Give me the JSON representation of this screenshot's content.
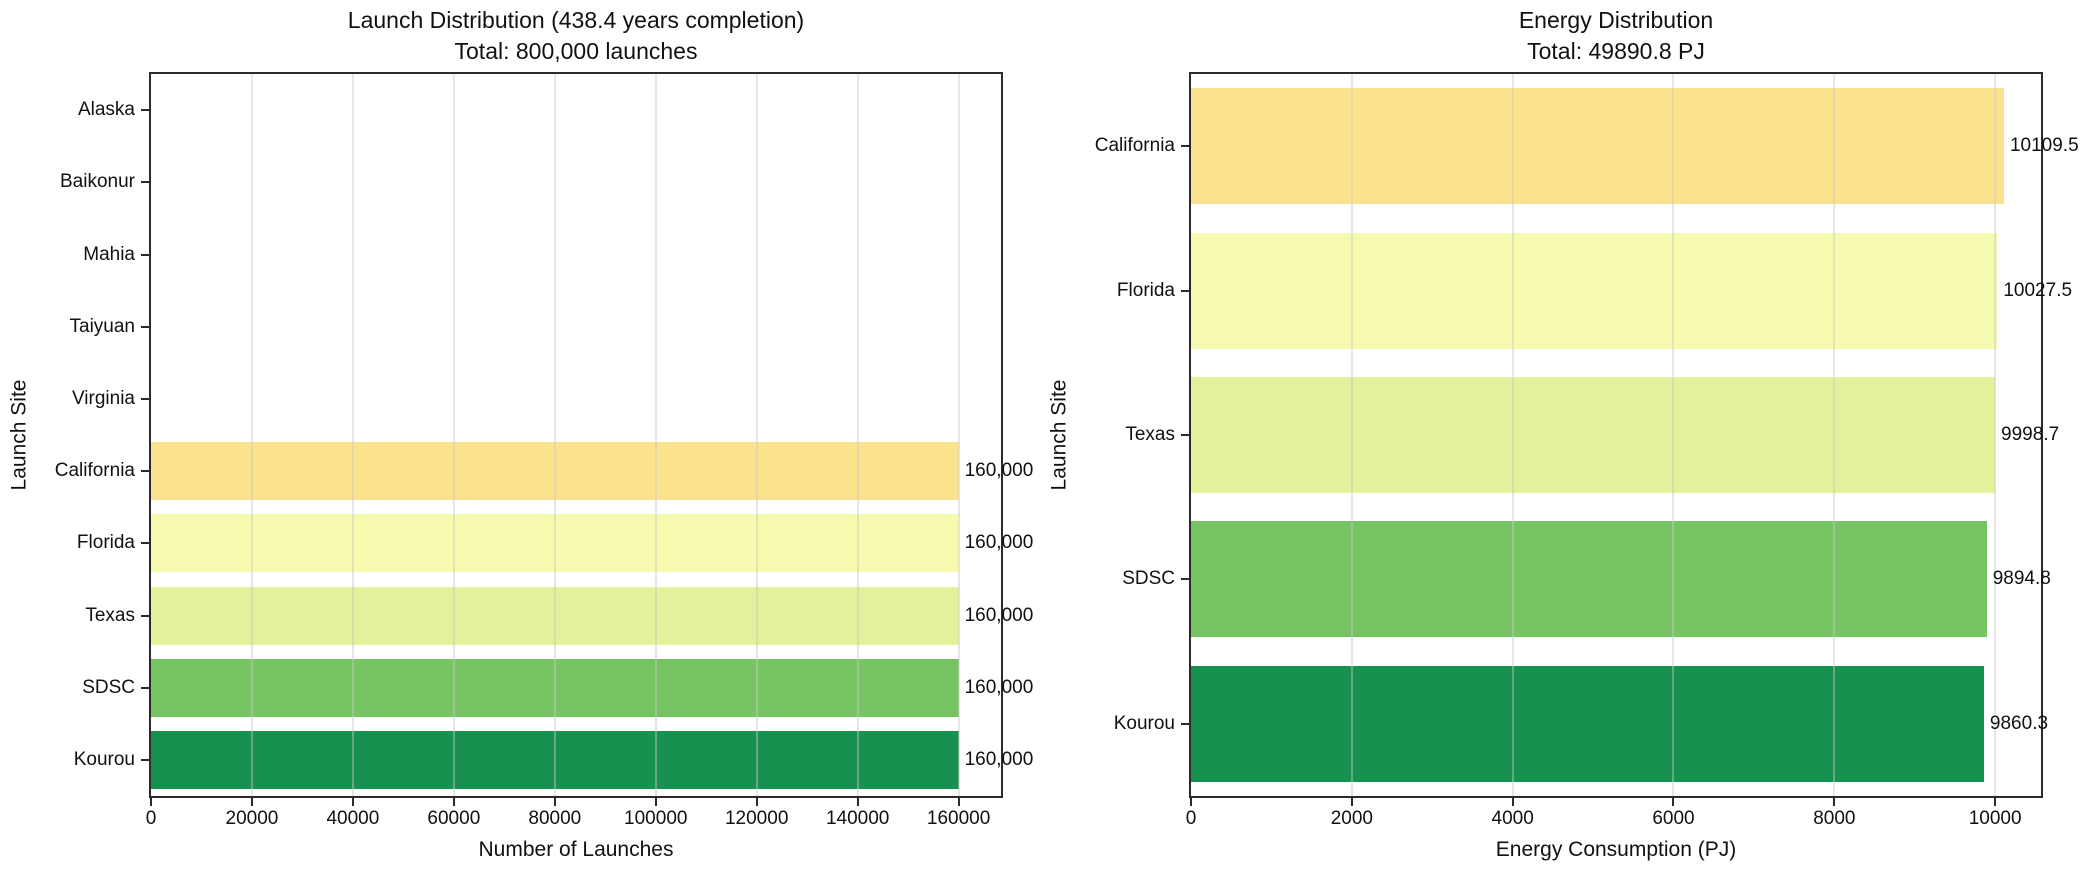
{
  "figure": {
    "background": "#ffffff",
    "text_color": "#111111",
    "spine_color": "#2a2a2a",
    "gridline_rgba": "rgba(200,200,200,0.45)"
  },
  "chart_data": [
    {
      "type": "bar",
      "orientation": "horizontal",
      "title": "Launch Distribution (438.4 years completion)",
      "subtitle": "Total: 800,000 launches",
      "xlabel": "Number of Launches",
      "ylabel": "Launch Site",
      "categories": [
        "Alaska",
        "Baikonur",
        "Mahia",
        "Taiyuan",
        "Virginia",
        "California",
        "Florida",
        "Texas",
        "SDSC",
        "Kourou"
      ],
      "values": [
        0,
        0,
        0,
        0,
        0,
        160000,
        160000,
        160000,
        160000,
        160000
      ],
      "bar_labels": [
        "",
        "",
        "",
        "",
        "",
        "160,000",
        "160,000",
        "160,000",
        "160,000",
        "160,000"
      ],
      "bar_colors": [
        "",
        "",
        "",
        "",
        "",
        "#FDE28E",
        "#F6FAAF",
        "#E3F19A",
        "#76C565",
        "#17914E"
      ],
      "xlim": [
        0,
        168400
      ],
      "xticks": [
        0,
        20000,
        40000,
        60000,
        80000,
        100000,
        120000,
        140000,
        160000
      ],
      "xtick_labels": [
        "0",
        "20000",
        "40000",
        "60000",
        "80000",
        "100000",
        "120000",
        "140000",
        "160000"
      ],
      "grid": "vertical",
      "bar_fraction": 0.8
    },
    {
      "type": "bar",
      "orientation": "horizontal",
      "title": "Energy Distribution",
      "subtitle": "Total: 49890.8 PJ",
      "xlabel": "Energy Consumption (PJ)",
      "ylabel": "Launch Site",
      "categories": [
        "California",
        "Florida",
        "Texas",
        "SDSC",
        "Kourou"
      ],
      "values": [
        10109.5,
        10027.5,
        9998.7,
        9894.8,
        9860.3
      ],
      "bar_labels": [
        "10109.5",
        "10027.5",
        "9998.7",
        "9894.8",
        "9860.3"
      ],
      "bar_colors": [
        "#FDE28E",
        "#F6FAAF",
        "#E3F19A",
        "#76C565",
        "#17914E"
      ],
      "xlim": [
        0,
        10570
      ],
      "xticks": [
        0,
        2000,
        4000,
        6000,
        8000,
        10000
      ],
      "xtick_labels": [
        "0",
        "2000",
        "4000",
        "6000",
        "8000",
        "10000"
      ],
      "grid": "vertical",
      "bar_fraction": 0.8
    }
  ]
}
